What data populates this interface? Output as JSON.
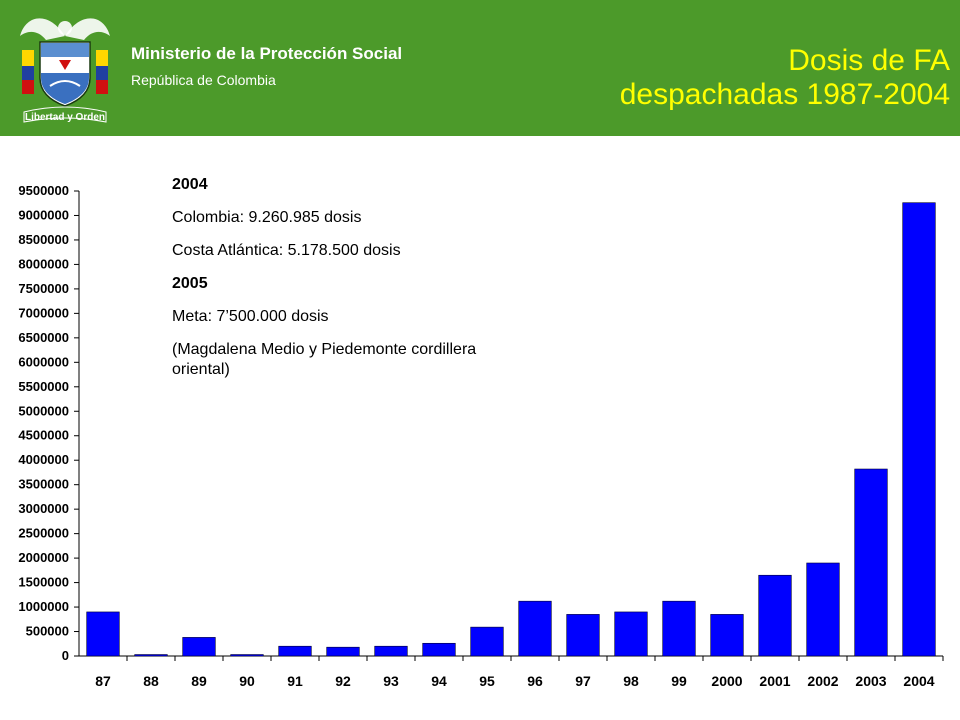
{
  "header": {
    "ministry_name": "Ministerio de la Protección Social",
    "ministry_country": "República de Colombia",
    "title_line1": "Dosis de FA",
    "title_line2": "despachadas 1987-2004",
    "logo_motto": "Libertad y Orden",
    "background_color": "#4c9a2a",
    "title_color": "#ffff00"
  },
  "notes": {
    "year_2004": "2004",
    "colombia": "Colombia: 9.260.985 dosis",
    "costa": "Costa Atlántica: 5.178.500 dosis",
    "year_2005": "2005",
    "meta": "Meta: 7’500.000 dosis",
    "region": "(Magdalena Medio y Piedemonte cordillera oriental)"
  },
  "chart_data": {
    "type": "bar",
    "categories": [
      "87",
      "88",
      "89",
      "90",
      "91",
      "92",
      "93",
      "94",
      "95",
      "96",
      "97",
      "98",
      "99",
      "2000",
      "2001",
      "2002",
      "2003",
      "2004"
    ],
    "values": [
      900000,
      30000,
      380000,
      30000,
      200000,
      180000,
      200000,
      260000,
      590000,
      1120000,
      850000,
      900000,
      1120000,
      850000,
      1650000,
      1900000,
      3820000,
      9260985
    ],
    "ylim": [
      0,
      9500000
    ],
    "yticks": [
      0,
      500000,
      1000000,
      1500000,
      2000000,
      2500000,
      3000000,
      3500000,
      4000000,
      4500000,
      5000000,
      5500000,
      6000000,
      6500000,
      7000000,
      7500000,
      8000000,
      8500000,
      9000000,
      9500000
    ],
    "bar_color": "#0000ff",
    "grid": false,
    "xlabel": "",
    "ylabel": "",
    "title": ""
  }
}
